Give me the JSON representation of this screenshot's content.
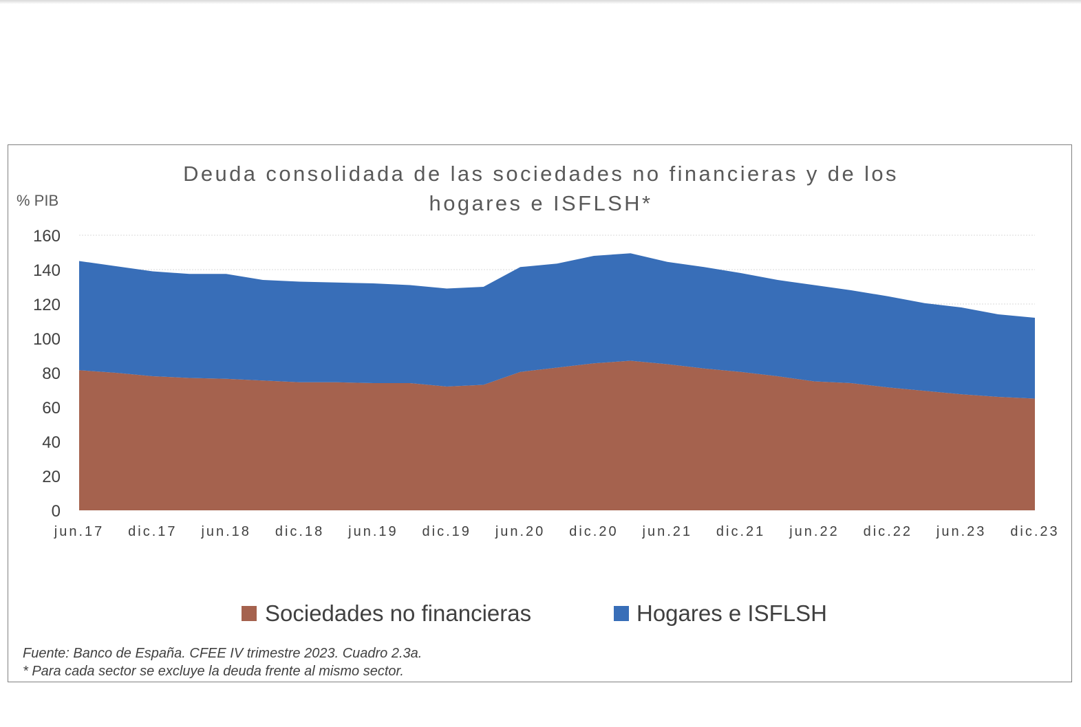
{
  "chart_data": {
    "type": "area",
    "stacked": true,
    "title_lines": [
      "Deuda consolidada de las sociedades no financieras y de los",
      "hogares e ISFLSH*"
    ],
    "ylabel": "% PIB",
    "xlabel": "",
    "ylim": [
      0,
      160
    ],
    "yticks": [
      "0",
      "20",
      "40",
      "60",
      "80",
      "100",
      "120",
      "140",
      "160"
    ],
    "grid": true,
    "x_tick_labels": [
      "jun.17",
      "dic.17",
      "jun.18",
      "dic.18",
      "jun.19",
      "dic.19",
      "jun.20",
      "dic.20",
      "jun.21",
      "dic.21",
      "jun.22",
      "dic.22",
      "jun.23",
      "dic.23"
    ],
    "series": [
      {
        "name": "Sociedades no financieras",
        "color": "#A5624E",
        "values": [
          81.5,
          80,
          78,
          77,
          76.5,
          75.5,
          74.5,
          74.5,
          74,
          74,
          72,
          73,
          80.5,
          83,
          85.5,
          87,
          85,
          82.5,
          80.5,
          78,
          75,
          74,
          71.5,
          69.5,
          67.5,
          66,
          65
        ]
      },
      {
        "name": "Hogares e ISFLSH",
        "color": "#386EB8",
        "values": [
          63.5,
          62,
          61,
          60.5,
          61,
          58.5,
          58.5,
          58,
          58,
          57,
          57,
          57,
          61,
          60.5,
          62.5,
          62.5,
          59.5,
          59,
          57.5,
          56,
          56,
          54,
          53,
          51,
          50.5,
          48,
          47
        ]
      }
    ],
    "legend_position": "bottom"
  },
  "source_note": "Fuente: Banco de España. CFEE IV trimestre 2023. Cuadro 2.3a.",
  "footnote": "* Para cada sector se excluye la deuda frente al mismo sector."
}
